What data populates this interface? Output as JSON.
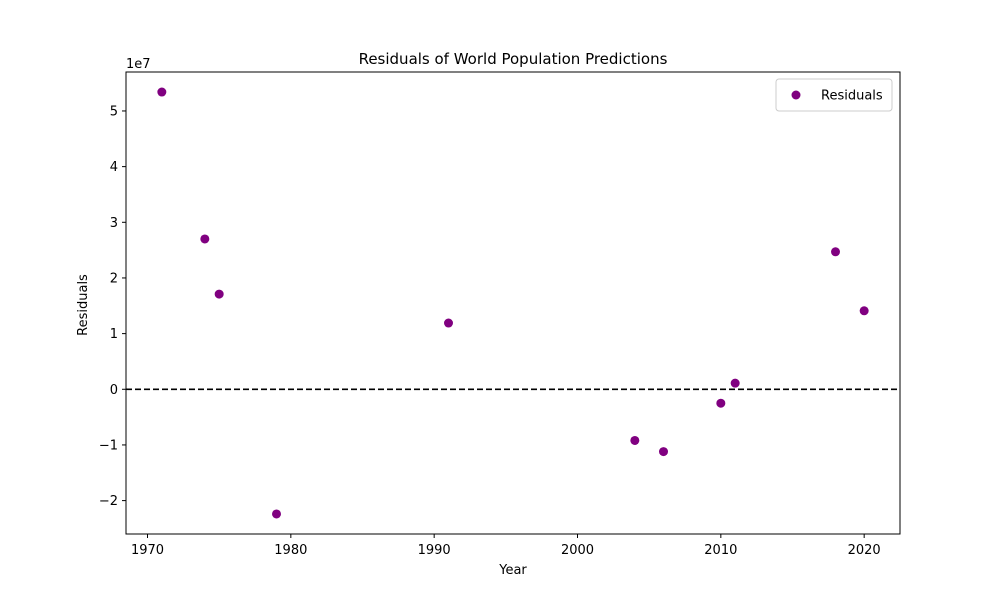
{
  "chart_data": {
    "type": "scatter",
    "title": "Residuals of World Population Predictions",
    "xlabel": "Year",
    "ylabel": "Residuals",
    "y_offset_label": "1e7",
    "xlim": [
      1968.5,
      2022.5
    ],
    "ylim": [
      -26000000,
      57000000
    ],
    "x_ticks": [
      1970,
      1980,
      1990,
      2000,
      2010,
      2020
    ],
    "y_ticks": [
      -20000000,
      -10000000,
      0,
      10000000,
      20000000,
      30000000,
      40000000,
      50000000
    ],
    "y_tick_labels": [
      "−2",
      "−1",
      "0",
      "1",
      "2",
      "3",
      "4",
      "5"
    ],
    "grid": false,
    "legend": {
      "position": "top-right",
      "entries": [
        "Residuals"
      ]
    },
    "reference_line": {
      "y": 0,
      "style": "dashed",
      "color": "#000000"
    },
    "series": [
      {
        "name": "Residuals",
        "color": "#800080",
        "points": [
          {
            "x": 1971,
            "y": 53400000
          },
          {
            "x": 1974,
            "y": 27000000
          },
          {
            "x": 1975,
            "y": 17100000
          },
          {
            "x": 1979,
            "y": -22400000
          },
          {
            "x": 1991,
            "y": 11900000
          },
          {
            "x": 2004,
            "y": -9200000
          },
          {
            "x": 2006,
            "y": -11200000
          },
          {
            "x": 2010,
            "y": -2500000
          },
          {
            "x": 2011,
            "y": 1100000
          },
          {
            "x": 2018,
            "y": 24700000
          },
          {
            "x": 2020,
            "y": 14100000
          }
        ]
      }
    ]
  }
}
